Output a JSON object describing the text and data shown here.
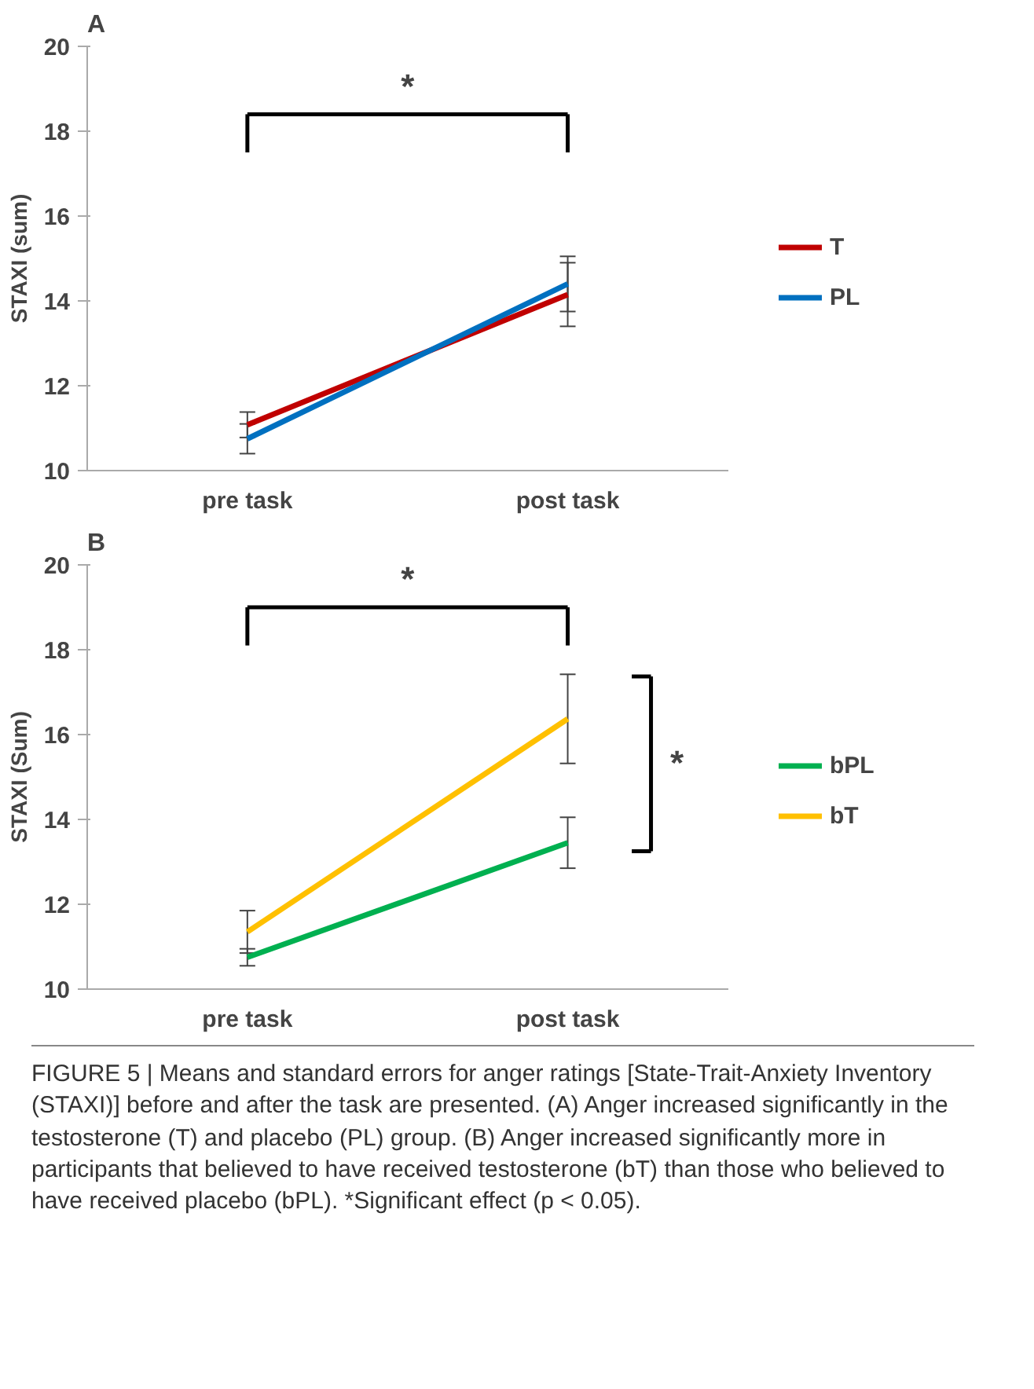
{
  "chart_data": [
    {
      "type": "line",
      "title": "A",
      "ylabel": "STAXI (sum)",
      "categories": [
        "pre task",
        "post task"
      ],
      "ylim": [
        10,
        20
      ],
      "yticks": [
        10,
        12,
        14,
        16,
        18,
        20
      ],
      "grid": false,
      "legend": "right",
      "marker": "none",
      "line_style": "solid",
      "series": [
        {
          "name": "T",
          "color": "#c00000",
          "values": [
            11.08,
            14.15
          ],
          "errors": [
            0.3,
            0.75
          ]
        },
        {
          "name": "PL",
          "color": "#0070c0",
          "values": [
            10.75,
            14.4
          ],
          "errors": [
            0.35,
            0.65
          ]
        }
      ],
      "annotations": [
        "*"
      ]
    },
    {
      "type": "line",
      "title": "B",
      "ylabel": "STAXI (Sum)",
      "categories": [
        "pre task",
        "post task"
      ],
      "ylim": [
        10,
        20
      ],
      "yticks": [
        10,
        12,
        14,
        16,
        18,
        20
      ],
      "grid": false,
      "legend": "right",
      "marker": "none",
      "line_style": "solid",
      "series": [
        {
          "name": "bPL",
          "color": "#00b050",
          "values": [
            10.75,
            13.45
          ],
          "errors": [
            0.2,
            0.6
          ]
        },
        {
          "name": "bT",
          "color": "#ffc000",
          "values": [
            11.35,
            16.37
          ],
          "errors": [
            0.5,
            1.05
          ]
        }
      ],
      "annotations": [
        "*",
        "*",
        "FIGURE 5 | Means and standard errors for anger ratings [State-Trait-Anxiety Inventory (STAXI)] before and after the task are presented. (A) Anger increased significantly in the testosterone (T) and placebo (PL) group. (B) Anger increased significantly more in participants that believed to have received testosterone (bT) than those who believed to have received placebo (bPL). *Significant effect (p < 0.05)."
      ]
    }
  ]
}
